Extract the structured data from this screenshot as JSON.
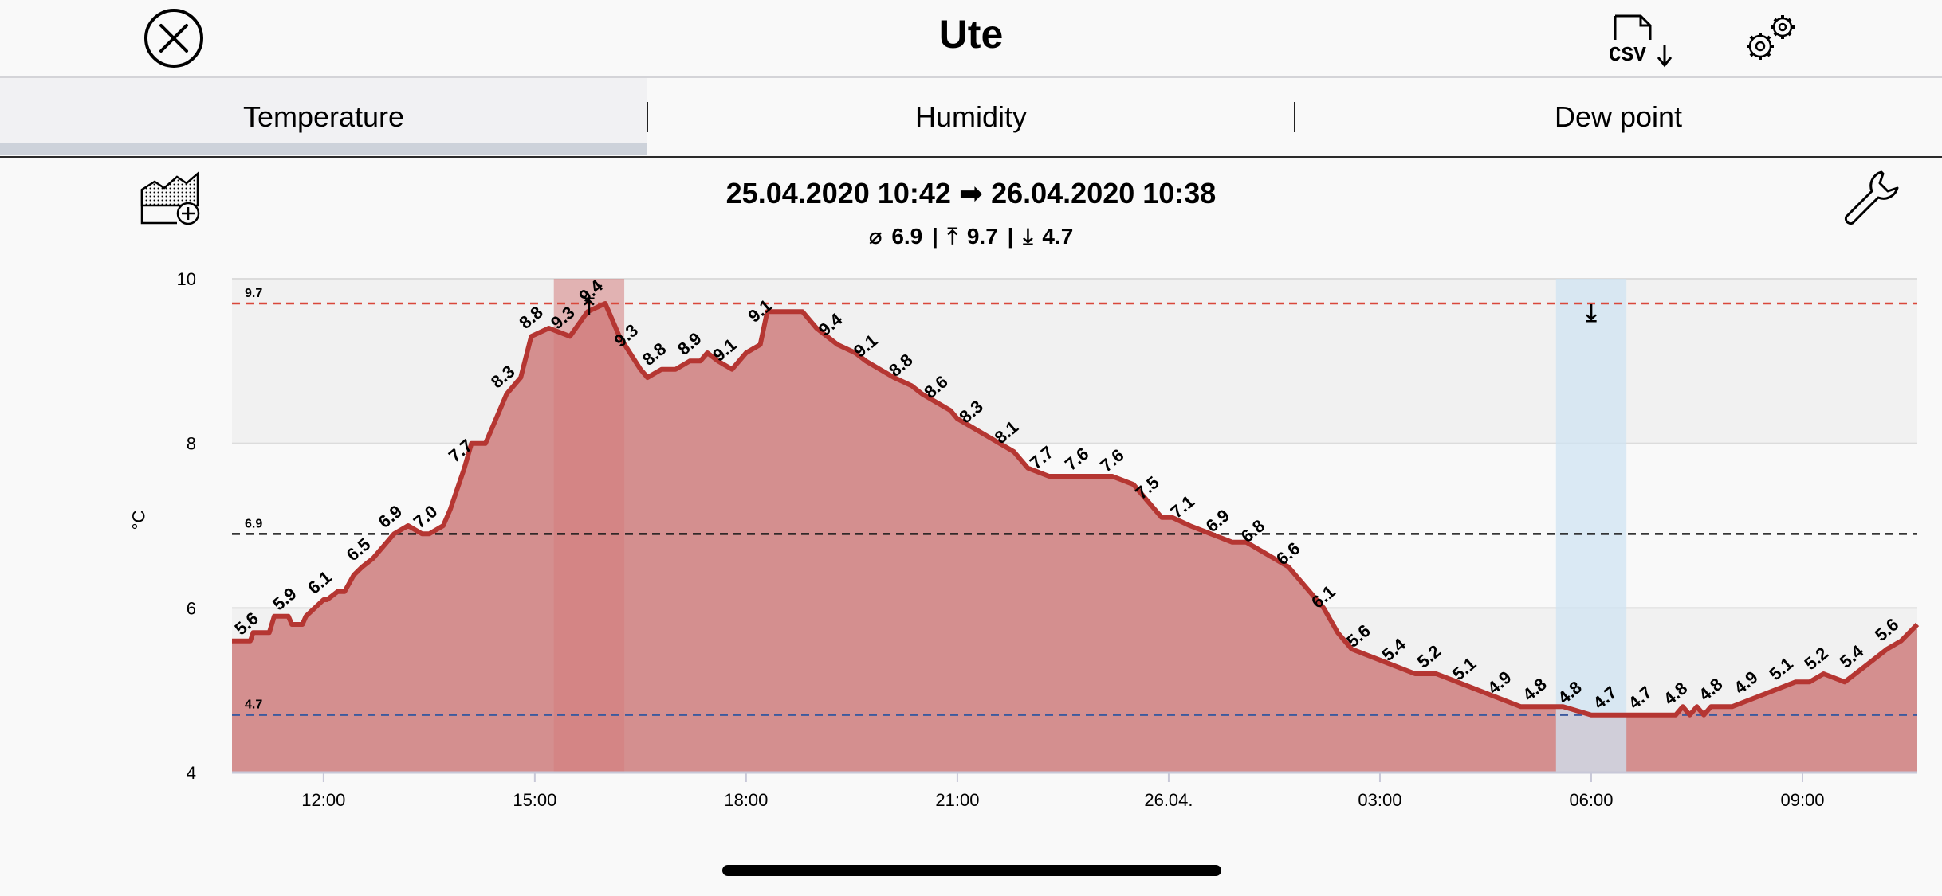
{
  "header": {
    "title": "Ute",
    "close_icon": "close-circle-icon",
    "csv_icon": "csv-download-icon",
    "settings_icon": "gears-icon"
  },
  "tabs": [
    {
      "label": "Temperature",
      "active": true
    },
    {
      "label": "Humidity",
      "active": false
    },
    {
      "label": "Dew point",
      "active": false
    }
  ],
  "toolbar": {
    "range_icon": "chart-add-icon",
    "wrench_icon": "wrench-icon"
  },
  "range": "25.04.2020 10:42 ➡ 26.04.2020 10:38",
  "stats": {
    "avg_symbol": "⌀",
    "avg": "6.9",
    "max_symbol": "⤒",
    "max": "9.7",
    "min_symbol": "⤓",
    "min": "4.7",
    "separator": "|"
  },
  "chart_data": {
    "type": "area",
    "ylabel": "°C",
    "ylim": [
      4,
      10
    ],
    "y_ticks": [
      "4",
      "6",
      "8",
      "10"
    ],
    "x_ticks": [
      {
        "label": "12:00",
        "t": 12.0
      },
      {
        "label": "15:00",
        "t": 15.0
      },
      {
        "label": "18:00",
        "t": 18.0
      },
      {
        "label": "21:00",
        "t": 21.0
      },
      {
        "label": "26.04.",
        "t": 24.0
      },
      {
        "label": "03:00",
        "t": 27.0
      },
      {
        "label": "06:00",
        "t": 30.0
      },
      {
        "label": "09:00",
        "t": 33.0
      }
    ],
    "x_range": [
      10.7,
      34.63
    ],
    "reference_lines": [
      {
        "label": "9.7",
        "value": 9.7,
        "color": "#d9483b"
      },
      {
        "label": "6.9",
        "value": 6.9,
        "color": "#1a1a1a"
      },
      {
        "label": "4.7",
        "value": 4.7,
        "color": "#3d5a9e"
      }
    ],
    "highlights": [
      {
        "from": 15.27,
        "to": 16.27,
        "color": "#d47e7e",
        "marker": "⤒"
      },
      {
        "from": 29.5,
        "to": 30.5,
        "color": "#cfe3f2",
        "marker": "⤓"
      }
    ],
    "series_color": "#b53632",
    "fill_color": "#d48f8f",
    "t": [
      10.7,
      10.96,
      11.0,
      11.23,
      11.3,
      11.5,
      11.55,
      11.7,
      11.75,
      12.0,
      12.05,
      12.2,
      12.3,
      12.43,
      12.55,
      12.7,
      12.9,
      13.0,
      13.2,
      13.4,
      13.5,
      13.7,
      13.8,
      14.0,
      14.1,
      14.3,
      14.45,
      14.6,
      14.8,
      14.95,
      15.2,
      15.5,
      15.75,
      16.0,
      16.2,
      16.5,
      16.6,
      16.8,
      17.0,
      17.2,
      17.35,
      17.45,
      17.6,
      17.8,
      18.0,
      18.2,
      18.3,
      18.4,
      18.6,
      18.8,
      19.0,
      19.3,
      19.55,
      19.7,
      19.9,
      20.1,
      20.35,
      20.5,
      20.7,
      20.9,
      21.0,
      21.2,
      21.4,
      21.6,
      21.8,
      22.0,
      22.3,
      22.6,
      22.8,
      23.0,
      23.2,
      23.5,
      23.7,
      23.9,
      24.05,
      24.3,
      24.6,
      24.9,
      25.1,
      25.3,
      25.5,
      25.7,
      25.9,
      26.2,
      26.4,
      26.6,
      26.9,
      27.2,
      27.5,
      27.8,
      28.1,
      28.4,
      28.7,
      29.0,
      29.3,
      29.6,
      30.0,
      30.3,
      30.6,
      30.9,
      31.2,
      31.3,
      31.4,
      31.5,
      31.6,
      31.7,
      32.0,
      32.3,
      32.6,
      32.9,
      33.1,
      33.3,
      33.6,
      33.9,
      34.2,
      34.4,
      34.63
    ],
    "v": [
      5.6,
      5.6,
      5.7,
      5.7,
      5.9,
      5.9,
      5.8,
      5.8,
      5.9,
      6.1,
      6.1,
      6.2,
      6.2,
      6.4,
      6.5,
      6.6,
      6.8,
      6.9,
      7.0,
      6.9,
      6.9,
      7.0,
      7.2,
      7.7,
      8.0,
      8.0,
      8.3,
      8.6,
      8.8,
      9.3,
      9.4,
      9.3,
      9.6,
      9.7,
      9.3,
      8.9,
      8.8,
      8.9,
      8.9,
      9.0,
      9.0,
      9.1,
      9.0,
      8.9,
      9.1,
      9.2,
      9.6,
      9.6,
      9.6,
      9.6,
      9.4,
      9.2,
      9.1,
      9.0,
      8.9,
      8.8,
      8.7,
      8.6,
      8.5,
      8.4,
      8.3,
      8.2,
      8.1,
      8.0,
      7.9,
      7.7,
      7.6,
      7.6,
      7.6,
      7.6,
      7.6,
      7.5,
      7.3,
      7.1,
      7.1,
      7.0,
      6.9,
      6.8,
      6.8,
      6.7,
      6.6,
      6.5,
      6.3,
      6.0,
      5.7,
      5.5,
      5.4,
      5.3,
      5.2,
      5.2,
      5.1,
      5.0,
      4.9,
      4.8,
      4.8,
      4.8,
      4.7,
      4.7,
      4.7,
      4.7,
      4.7,
      4.8,
      4.7,
      4.8,
      4.7,
      4.8,
      4.8,
      4.9,
      5.0,
      5.1,
      5.1,
      5.2,
      5.1,
      5.3,
      5.5,
      5.6,
      5.8
    ],
    "value_labels": [
      {
        "t": 10.96,
        "label": "5.6"
      },
      {
        "t": 11.5,
        "label": "5.9"
      },
      {
        "t": 12.0,
        "label": "6.1"
      },
      {
        "t": 12.55,
        "label": "6.5"
      },
      {
        "t": 13.0,
        "label": "6.9"
      },
      {
        "t": 13.5,
        "label": "7.0"
      },
      {
        "t": 14.0,
        "label": "7.7"
      },
      {
        "t": 14.6,
        "label": "8.3"
      },
      {
        "t": 15.0,
        "label": "8.8"
      },
      {
        "t": 15.45,
        "label": "9.3"
      },
      {
        "t": 15.85,
        "label": "9.4"
      },
      {
        "t": 16.35,
        "label": "9.3"
      },
      {
        "t": 16.75,
        "label": "8.8"
      },
      {
        "t": 17.25,
        "label": "8.9"
      },
      {
        "t": 17.75,
        "label": "9.1"
      },
      {
        "t": 18.25,
        "label": "9.1"
      },
      {
        "t": 19.25,
        "label": "9.4"
      },
      {
        "t": 19.75,
        "label": "9.1"
      },
      {
        "t": 20.25,
        "label": "8.8"
      },
      {
        "t": 20.75,
        "label": "8.6"
      },
      {
        "t": 21.25,
        "label": "8.3"
      },
      {
        "t": 21.75,
        "label": "8.1"
      },
      {
        "t": 22.25,
        "label": "7.7"
      },
      {
        "t": 22.75,
        "label": "7.6"
      },
      {
        "t": 23.25,
        "label": "7.6"
      },
      {
        "t": 23.75,
        "label": "7.5"
      },
      {
        "t": 24.25,
        "label": "7.1"
      },
      {
        "t": 24.75,
        "label": "6.9"
      },
      {
        "t": 25.25,
        "label": "6.8"
      },
      {
        "t": 25.75,
        "label": "6.6"
      },
      {
        "t": 26.25,
        "label": "6.1"
      },
      {
        "t": 26.75,
        "label": "5.6"
      },
      {
        "t": 27.25,
        "label": "5.4"
      },
      {
        "t": 27.75,
        "label": "5.2"
      },
      {
        "t": 28.25,
        "label": "5.1"
      },
      {
        "t": 28.75,
        "label": "4.9"
      },
      {
        "t": 29.25,
        "label": "4.8"
      },
      {
        "t": 29.75,
        "label": "4.8"
      },
      {
        "t": 30.25,
        "label": "4.7"
      },
      {
        "t": 30.75,
        "label": "4.7"
      },
      {
        "t": 31.25,
        "label": "4.8"
      },
      {
        "t": 31.75,
        "label": "4.8"
      },
      {
        "t": 32.25,
        "label": "4.9"
      },
      {
        "t": 32.75,
        "label": "5.1"
      },
      {
        "t": 33.25,
        "label": "5.2"
      },
      {
        "t": 33.75,
        "label": "5.4"
      },
      {
        "t": 34.25,
        "label": "5.6"
      }
    ]
  }
}
